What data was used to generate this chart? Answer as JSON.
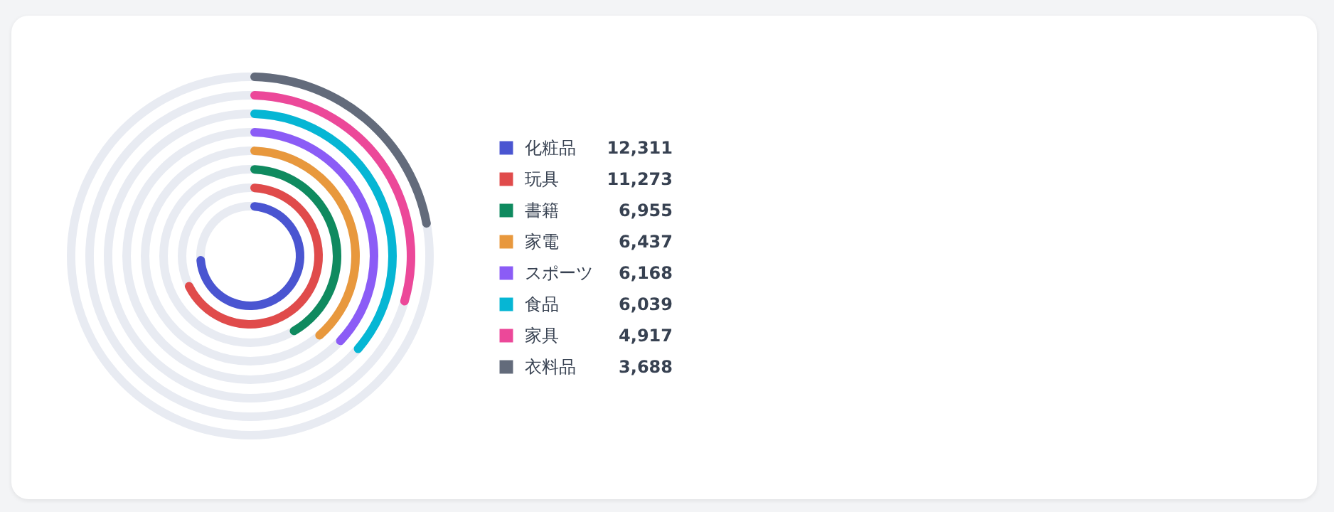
{
  "chart_data": {
    "type": "other",
    "categories": [
      "化粧品",
      "玩具",
      "書籍",
      "家電",
      "スポーツ",
      "食品",
      "家具",
      "衣料品"
    ],
    "values": [
      12311,
      11273,
      6955,
      6437,
      6168,
      6039,
      4917,
      3688
    ],
    "value_labels": [
      "12,311",
      "11,273",
      "6,955",
      "6,437",
      "6,168",
      "6,039",
      "4,917",
      "3,688"
    ],
    "colors": [
      "#4a55d1",
      "#e04b4b",
      "#0f8a5f",
      "#e8983d",
      "#8b5cf6",
      "#06b6d4",
      "#ec4899",
      "#636b7b"
    ]
  }
}
